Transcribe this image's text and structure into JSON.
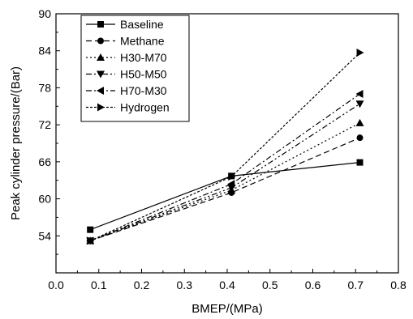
{
  "chart_data": {
    "type": "line",
    "title": "",
    "xlabel": "BMEP/(MPa)",
    "ylabel": "Peak cylinder pressure/(Bar)",
    "xlim": [
      0.0,
      0.8
    ],
    "ylim": [
      48,
      90
    ],
    "x_ticks": [
      "0.0",
      "0.1",
      "0.2",
      "0.3",
      "0.4",
      "0.5",
      "0.6",
      "0.7",
      "0.8"
    ],
    "y_ticks": [
      "54",
      "60",
      "66",
      "72",
      "78",
      "84",
      "90"
    ],
    "grid": false,
    "legend_position": "top-left",
    "x": [
      0.08,
      0.41,
      0.71
    ],
    "series": [
      {
        "name": "Baseline",
        "values": [
          55.0,
          63.7,
          65.9
        ],
        "marker": "square",
        "dash": "solid"
      },
      {
        "name": "Methane",
        "values": [
          53.2,
          61.0,
          69.9
        ],
        "marker": "circle",
        "dash": "dash"
      },
      {
        "name": "H30-M70",
        "values": [
          53.2,
          61.4,
          72.3
        ],
        "marker": "triangle-up",
        "dash": "dot"
      },
      {
        "name": "H50-M50",
        "values": [
          53.2,
          61.8,
          75.4
        ],
        "marker": "triangle-down",
        "dash": "dashdotdot"
      },
      {
        "name": "H70-M30",
        "values": [
          53.2,
          62.4,
          77.0
        ],
        "marker": "triangle-left",
        "dash": "dashdot"
      },
      {
        "name": "Hydrogen",
        "values": [
          53.2,
          63.6,
          83.7
        ],
        "marker": "triangle-right",
        "dash": "shortdash"
      }
    ]
  }
}
